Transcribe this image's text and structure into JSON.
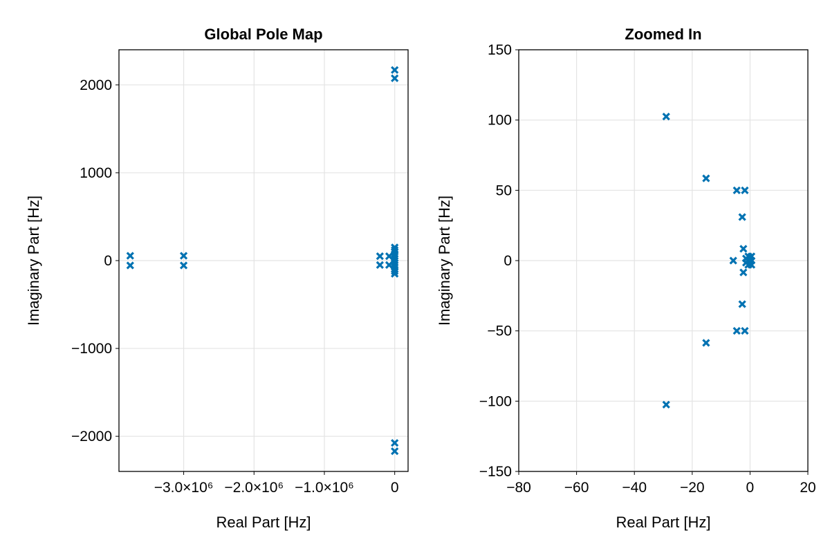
{
  "chart_data": [
    {
      "type": "scatter",
      "title": "Global Pole Map",
      "xlabel": "Real Part [Hz]",
      "ylabel": "Imaginary Part [Hz]",
      "xlim": [
        -3920000,
        190000
      ],
      "ylim": [
        -2400,
        2400
      ],
      "xticks": [
        -3000000,
        -2000000,
        -1000000,
        0
      ],
      "xtick_labels": [
        "−3.0×10⁶",
        "−2.0×10⁶",
        "−1.0×10⁶",
        "0"
      ],
      "yticks": [
        -2000,
        -1000,
        0,
        1000,
        2000
      ],
      "ytick_labels": [
        "−2000",
        "−1000",
        "0",
        "1000",
        "2000"
      ],
      "grid": true,
      "marker": "x",
      "color": "#0072b2",
      "points": [
        [
          -3760000,
          55
        ],
        [
          -3760000,
          -55
        ],
        [
          -3000000,
          55
        ],
        [
          -3000000,
          -55
        ],
        [
          -210000,
          50
        ],
        [
          -210000,
          -50
        ],
        [
          -80000,
          50
        ],
        [
          -80000,
          -50
        ],
        [
          0,
          150
        ],
        [
          0,
          120
        ],
        [
          0,
          100
        ],
        [
          0,
          75
        ],
        [
          0,
          50
        ],
        [
          0,
          25
        ],
        [
          0,
          0
        ],
        [
          0,
          -25
        ],
        [
          0,
          -50
        ],
        [
          0,
          -75
        ],
        [
          0,
          -100
        ],
        [
          0,
          -120
        ],
        [
          0,
          -150
        ],
        [
          0,
          2170
        ],
        [
          0,
          2075
        ],
        [
          0,
          -2075
        ],
        [
          0,
          -2170
        ]
      ]
    },
    {
      "type": "scatter",
      "title": "Zoomed In",
      "xlabel": "Real Part [Hz]",
      "ylabel": "Imaginary Part [Hz]",
      "xlim": [
        -80,
        20
      ],
      "ylim": [
        -150,
        150
      ],
      "xticks": [
        -80,
        -60,
        -40,
        -20,
        0,
        20
      ],
      "xtick_labels": [
        "−80",
        "−60",
        "−40",
        "−20",
        "0",
        "20"
      ],
      "yticks": [
        -150,
        -100,
        -50,
        0,
        50,
        100,
        150
      ],
      "ytick_labels": [
        "−150",
        "−100",
        "−50",
        "0",
        "50",
        "100",
        "150"
      ],
      "grid": true,
      "marker": "x",
      "color": "#0072b2",
      "points": [
        [
          -29,
          102.5
        ],
        [
          -29,
          -102.5
        ],
        [
          -15.2,
          58.5
        ],
        [
          -15.2,
          -58.5
        ],
        [
          -4.6,
          50
        ],
        [
          -4.6,
          -50
        ],
        [
          -1.8,
          50
        ],
        [
          -1.8,
          -50
        ],
        [
          -2.7,
          31
        ],
        [
          -2.7,
          -31
        ],
        [
          -2.3,
          8.4
        ],
        [
          -2.3,
          -8.4
        ],
        [
          -5.8,
          0
        ],
        [
          -1.4,
          1.5
        ],
        [
          -1.4,
          -1.5
        ],
        [
          -0.6,
          3
        ],
        [
          -0.6,
          -3
        ],
        [
          0,
          2
        ],
        [
          0,
          -2
        ],
        [
          0.5,
          3
        ],
        [
          0.5,
          -3
        ],
        [
          0.5,
          0
        ],
        [
          -0.8,
          0
        ]
      ]
    }
  ]
}
